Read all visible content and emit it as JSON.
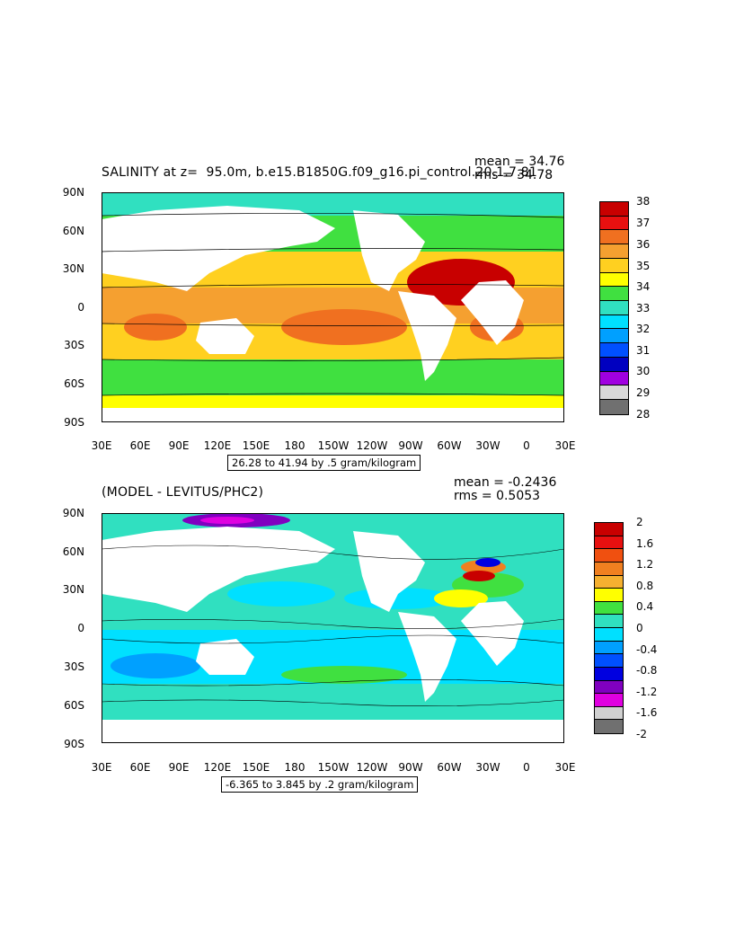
{
  "panels": [
    {
      "title": "SALINITY at z=  95.0m, b.e15.B1850G.f09_g16.pi_control.20.1.7.81",
      "mean_text": "mean = 34.76",
      "rms_text": "rms = 34.78",
      "range_text": "26.28 to 41.94 by .5 gram/kilogram",
      "lat_labels": [
        "90N",
        "60N",
        "30N",
        "0",
        "30S",
        "60S",
        "90S"
      ],
      "lon_labels": [
        "30E",
        "60E",
        "90E",
        "120E",
        "150E",
        "180",
        "150W",
        "120W",
        "90W",
        "60W",
        "30W",
        "0",
        "30E"
      ],
      "colorbar": {
        "labels": [
          "38",
          "37",
          "36",
          "35",
          "34",
          "33",
          "32",
          "31",
          "30",
          "29",
          "28"
        ],
        "colors": [
          "#c80000",
          "#e81010",
          "#f07020",
          "#f5a030",
          "#ffd020",
          "#ffff00",
          "#40e040",
          "#30e0c0",
          "#00e0ff",
          "#00a0ff",
          "#0050ff",
          "#0000c0",
          "#a000e0",
          "#d8d8d8",
          "#707070"
        ]
      }
    },
    {
      "title": "(MODEL - LEVITUS/PHC2)",
      "mean_text": "mean = -0.2436",
      "rms_text": "rms = 0.5053",
      "range_text": "-6.365 to 3.845 by .2 gram/kilogram",
      "lat_labels": [
        "90N",
        "60N",
        "30N",
        "0",
        "30S",
        "60S",
        "90S"
      ],
      "lon_labels": [
        "30E",
        "60E",
        "90E",
        "120E",
        "150E",
        "180",
        "150W",
        "120W",
        "90W",
        "60W",
        "30W",
        "0",
        "30E"
      ],
      "colorbar": {
        "labels": [
          "2",
          "1.6",
          "1.2",
          "0.8",
          "0.4",
          "0",
          "-0.4",
          "-0.8",
          "-1.2",
          "-1.6",
          "-2"
        ],
        "colors": [
          "#c80000",
          "#e81010",
          "#f05010",
          "#f08020",
          "#f5b030",
          "#ffff00",
          "#40e040",
          "#30e0c0",
          "#00e0ff",
          "#00a0ff",
          "#0050ff",
          "#0000e0",
          "#8000c0",
          "#e000e0",
          "#d0d0d0",
          "#707070"
        ]
      }
    }
  ]
}
